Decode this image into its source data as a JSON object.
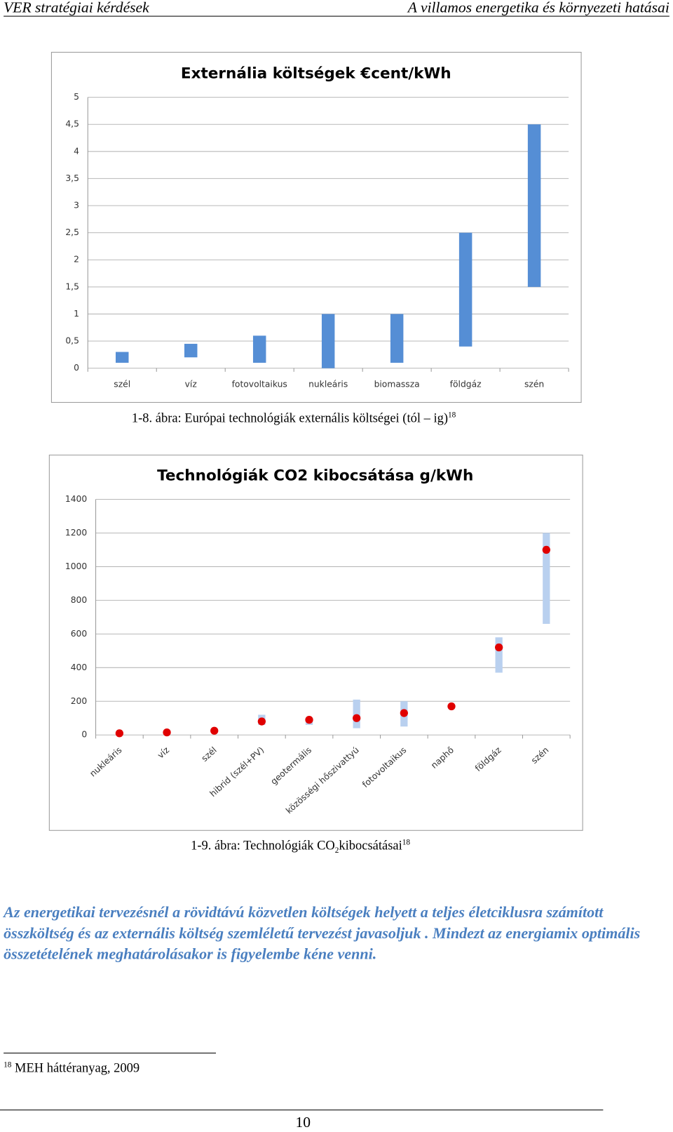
{
  "header": {
    "left": "VER stratégiai kérdések",
    "right": "A villamos energetika és környezeti hatásai"
  },
  "chart_data": [
    {
      "type": "bar",
      "title": "Externália költségek €cent/kWh",
      "categories": [
        "szél",
        "víz",
        "fotovoltaikus",
        "nukleáris",
        "biomassza",
        "földgáz",
        "szén"
      ],
      "values": [
        [
          0.1,
          0.3
        ],
        [
          0.2,
          0.45
        ],
        [
          0.1,
          0.6
        ],
        [
          0,
          1
        ],
        [
          0.1,
          1
        ],
        [
          0.4,
          2.5
        ],
        [
          1.5,
          4.5
        ]
      ],
      "color": "#558ed5",
      "ylim": [
        0,
        5
      ],
      "yticks": [
        0,
        {
          "value": 0.5,
          "label": "0,5"
        },
        1,
        {
          "value": 1.5,
          "label": "1,5"
        },
        2,
        {
          "value": 2.5,
          "label": "2,5"
        },
        3,
        {
          "value": 3.5,
          "label": "3,5"
        },
        4,
        {
          "value": 4.5,
          "label": "4,5"
        },
        5
      ],
      "grid": true,
      "caption": {
        "text": "1-8. ábra: Európai technológiák externális költségei (tól – ig)",
        "footnote_ref": "18"
      }
    },
    {
      "type": "scatter",
      "title": "Technológiák CO2 kibocsátása g/kWh",
      "categories": [
        "nukleáris",
        "víz",
        "szél",
        "hibrid (szél+PV)",
        "geotermális",
        "közösségi hőszivattyú",
        "fotovoltaikus",
        "naphő",
        "földgáz",
        "szén"
      ],
      "values": [
        10,
        15,
        25,
        80,
        90,
        100,
        130,
        170,
        520,
        1100
      ],
      "ranges": [
        null,
        null,
        null,
        [
          60,
          120
        ],
        [
          60,
          100
        ],
        [
          40,
          210
        ],
        [
          50,
          200
        ],
        null,
        [
          370,
          580
        ],
        [
          660,
          1200
        ]
      ],
      "color": "#e00000",
      "range_color": "#b9d0ef",
      "ylim": [
        0,
        1400
      ],
      "yticks": [
        0,
        200,
        400,
        600,
        800,
        1000,
        1200,
        1400
      ],
      "grid": true,
      "caption": {
        "text": "1-9. ábra: Technológiák CO",
        "subscript": "2",
        "text_after": "kibocsátásai",
        "footnote_ref": "18"
      }
    }
  ],
  "paragraph": "Az energetikai tervezésnél a rövidtávú közvetlen költségek helyett a teljes életciklusra számított összköltség és az externális költség szemléletű tervezést javasoljuk . Mindezt az energiamix optimális összetételének meghatárolásakor is figyelembe kéne venni.",
  "footnote": {
    "number": "18",
    "text": "MEH háttéranyag, 2009"
  },
  "page_number": "10"
}
